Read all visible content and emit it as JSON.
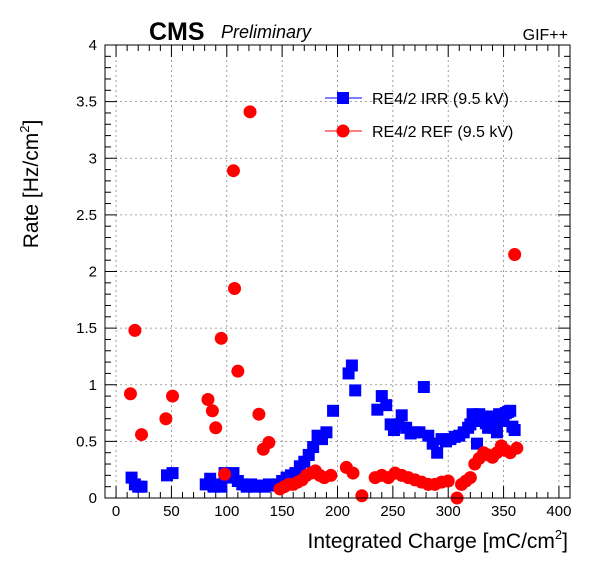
{
  "header": {
    "experiment": "CMS",
    "status": "Preliminary",
    "facility": "GIF++"
  },
  "chart_data": {
    "type": "scatter",
    "xlabel": "Integrated Charge [mC/cm",
    "xlabel_sup": "2",
    "xlabel_end": "]",
    "ylabel": "Rate [Hz/cm",
    "ylabel_sup": "2",
    "ylabel_end": "]",
    "xlim": [
      -10,
      410
    ],
    "ylim": [
      0,
      4
    ],
    "x_ticks": [
      0,
      50,
      100,
      150,
      200,
      250,
      300,
      350,
      400
    ],
    "y_ticks": [
      0,
      0.5,
      1,
      1.5,
      2,
      2.5,
      3,
      3.5,
      4
    ],
    "y_tick_labels": [
      "0",
      "0.5",
      "1",
      "1.5",
      "2",
      "2.5",
      "3",
      "3.5",
      "4"
    ],
    "grid": true,
    "legend_position": "top-right",
    "series": [
      {
        "name": "RE4/2 IRR (9.5 kV)",
        "color": "#0000ff",
        "marker": "square",
        "points": [
          [
            14,
            0.18
          ],
          [
            17,
            0.12
          ],
          [
            20,
            0.1
          ],
          [
            23,
            0.1
          ],
          [
            46,
            0.2
          ],
          [
            51,
            0.22
          ],
          [
            81,
            0.12
          ],
          [
            85,
            0.17
          ],
          [
            88,
            0.1
          ],
          [
            91,
            0.12
          ],
          [
            95,
            0.1
          ],
          [
            98,
            0.22
          ],
          [
            102,
            0.18
          ],
          [
            106,
            0.22
          ],
          [
            110,
            0.15
          ],
          [
            114,
            0.12
          ],
          [
            118,
            0.1
          ],
          [
            122,
            0.12
          ],
          [
            126,
            0.1
          ],
          [
            130,
            0.11
          ],
          [
            134,
            0.1
          ],
          [
            138,
            0.12
          ],
          [
            142,
            0.11
          ],
          [
            146,
            0.12
          ],
          [
            150,
            0.15
          ],
          [
            154,
            0.18
          ],
          [
            158,
            0.2
          ],
          [
            162,
            0.22
          ],
          [
            166,
            0.28
          ],
          [
            170,
            0.32
          ],
          [
            174,
            0.38
          ],
          [
            178,
            0.45
          ],
          [
            182,
            0.55
          ],
          [
            186,
            0.52
          ],
          [
            190,
            0.58
          ],
          [
            196,
            0.77
          ],
          [
            210,
            1.1
          ],
          [
            213,
            1.17
          ],
          [
            216,
            0.95
          ],
          [
            236,
            0.78
          ],
          [
            240,
            0.9
          ],
          [
            244,
            0.82
          ],
          [
            248,
            0.65
          ],
          [
            251,
            0.6
          ],
          [
            255,
            0.65
          ],
          [
            258,
            0.73
          ],
          [
            262,
            0.62
          ],
          [
            266,
            0.57
          ],
          [
            270,
            0.58
          ],
          [
            274,
            0.58
          ],
          [
            278,
            0.98
          ],
          [
            282,
            0.55
          ],
          [
            286,
            0.48
          ],
          [
            290,
            0.4
          ],
          [
            294,
            0.52
          ],
          [
            298,
            0.5
          ],
          [
            302,
            0.52
          ],
          [
            306,
            0.54
          ],
          [
            310,
            0.55
          ],
          [
            314,
            0.58
          ],
          [
            318,
            0.62
          ],
          [
            320,
            0.65
          ],
          [
            322,
            0.74
          ],
          [
            324,
            0.68
          ],
          [
            326,
            0.48
          ],
          [
            328,
            0.74
          ],
          [
            330,
            0.72
          ],
          [
            332,
            0.7
          ],
          [
            334,
            0.66
          ],
          [
            336,
            0.62
          ],
          [
            338,
            0.72
          ],
          [
            340,
            0.66
          ],
          [
            342,
            0.62
          ],
          [
            344,
            0.58
          ],
          [
            346,
            0.74
          ],
          [
            348,
            0.7
          ],
          [
            350,
            0.68
          ],
          [
            352,
            0.75
          ],
          [
            354,
            0.76
          ],
          [
            356,
            0.77
          ],
          [
            358,
            0.63
          ],
          [
            360,
            0.6
          ]
        ]
      },
      {
        "name": "RE4/2 REF (9.5 kV)",
        "color": "#ff0000",
        "marker": "circle",
        "points": [
          [
            13,
            0.92
          ],
          [
            17,
            1.48
          ],
          [
            23,
            0.56
          ],
          [
            45,
            0.7
          ],
          [
            51,
            0.9
          ],
          [
            83,
            0.87
          ],
          [
            87,
            0.77
          ],
          [
            90,
            0.62
          ],
          [
            95,
            1.41
          ],
          [
            98,
            0.21
          ],
          [
            106,
            2.89
          ],
          [
            107,
            1.85
          ],
          [
            110,
            1.12
          ],
          [
            121,
            3.41
          ],
          [
            129,
            0.74
          ],
          [
            133,
            0.43
          ],
          [
            138,
            0.49
          ],
          [
            148,
            0.08
          ],
          [
            152,
            0.1
          ],
          [
            156,
            0.12
          ],
          [
            160,
            0.12
          ],
          [
            164,
            0.14
          ],
          [
            168,
            0.16
          ],
          [
            172,
            0.2
          ],
          [
            176,
            0.22
          ],
          [
            180,
            0.24
          ],
          [
            184,
            0.2
          ],
          [
            188,
            0.18
          ],
          [
            194,
            0.2
          ],
          [
            208,
            0.27
          ],
          [
            214,
            0.22
          ],
          [
            222,
            0.02
          ],
          [
            234,
            0.18
          ],
          [
            240,
            0.2
          ],
          [
            246,
            0.18
          ],
          [
            252,
            0.22
          ],
          [
            258,
            0.2
          ],
          [
            264,
            0.18
          ],
          [
            270,
            0.16
          ],
          [
            276,
            0.14
          ],
          [
            282,
            0.12
          ],
          [
            288,
            0.12
          ],
          [
            294,
            0.14
          ],
          [
            300,
            0.15
          ],
          [
            308,
            0.0
          ],
          [
            312,
            0.12
          ],
          [
            316,
            0.15
          ],
          [
            320,
            0.18
          ],
          [
            324,
            0.3
          ],
          [
            328,
            0.35
          ],
          [
            332,
            0.4
          ],
          [
            336,
            0.38
          ],
          [
            340,
            0.36
          ],
          [
            344,
            0.4
          ],
          [
            348,
            0.46
          ],
          [
            352,
            0.42
          ],
          [
            356,
            0.4
          ],
          [
            360,
            2.15
          ],
          [
            362,
            0.44
          ]
        ]
      }
    ]
  }
}
